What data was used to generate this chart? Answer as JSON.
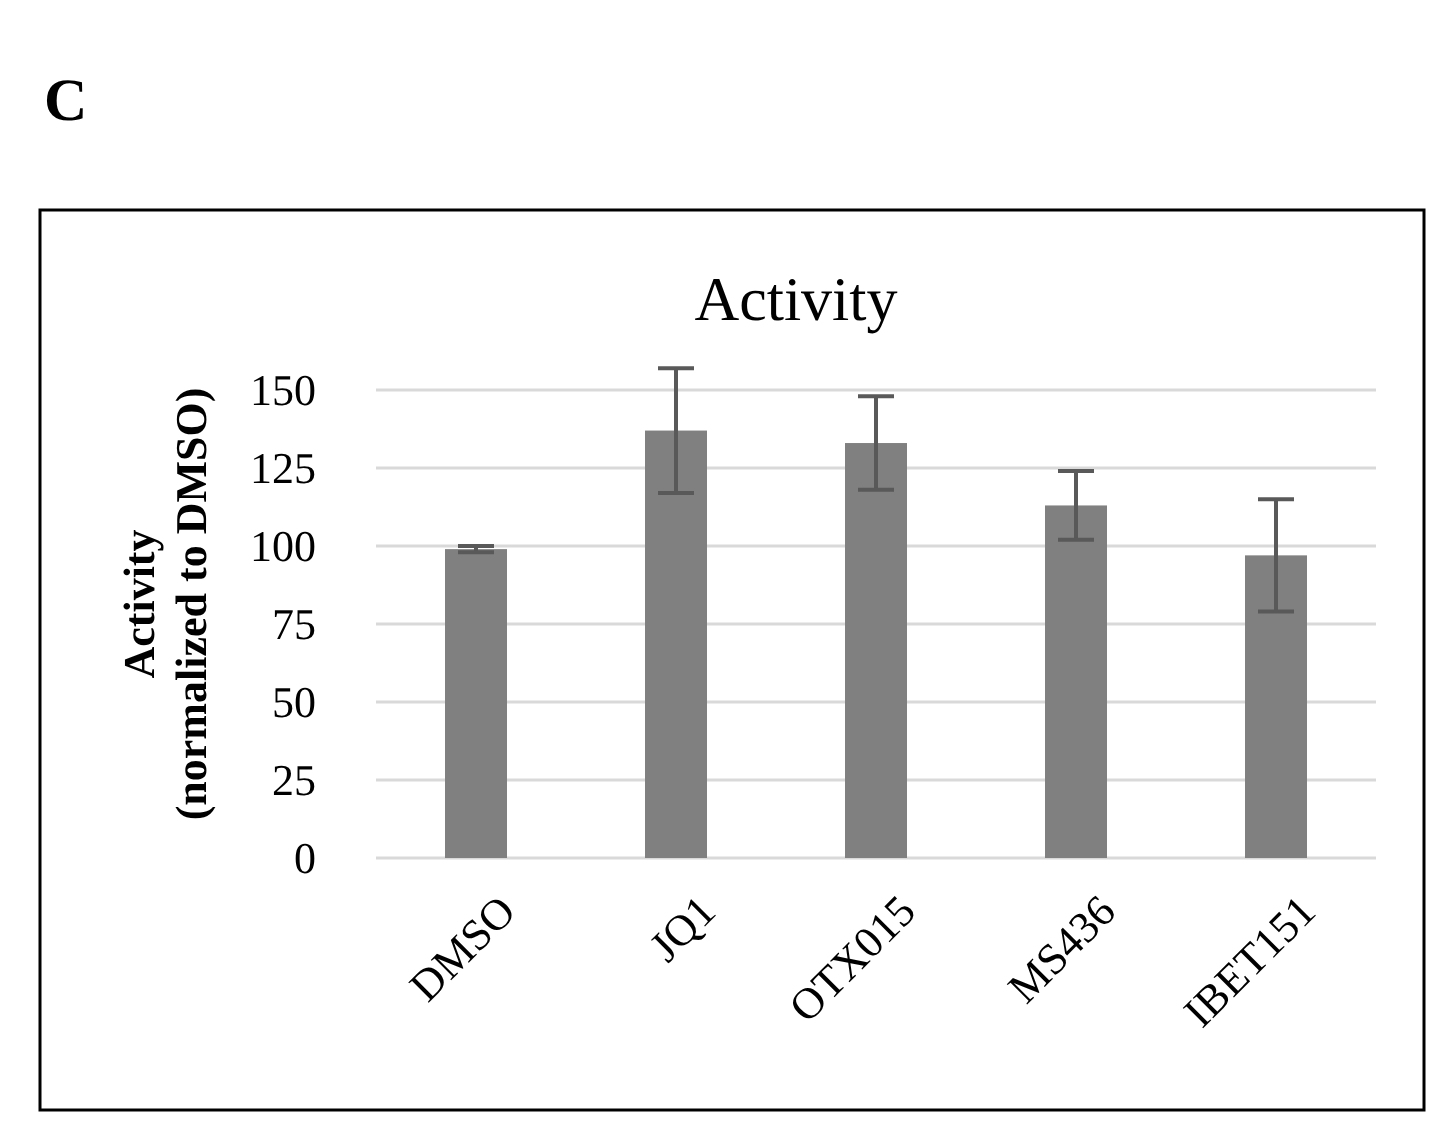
{
  "chart_data": {
    "type": "bar",
    "title": "Activity",
    "ylabel": "Activity\n(normalized to DMSO)",
    "categories": [
      "DMSO",
      "JQ1",
      "OTX015",
      "MS436",
      "IBET151"
    ],
    "values": [
      99,
      137,
      133,
      113,
      97
    ],
    "color": "#808080",
    "errors": [
      1,
      20,
      15,
      11,
      18
    ],
    "ylim": [
      0,
      150
    ],
    "yticks": [
      0,
      25,
      50,
      75,
      100,
      125,
      150
    ],
    "grid": "y",
    "annotations": [
      "C"
    ]
  }
}
